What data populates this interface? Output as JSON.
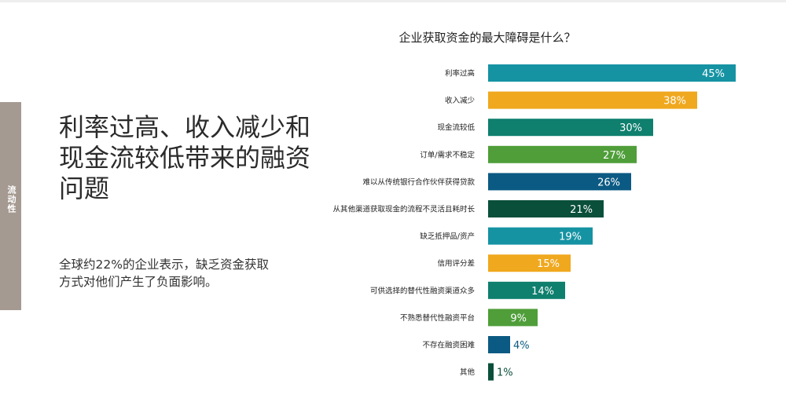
{
  "side_tab": {
    "label": "流动性"
  },
  "headline": "利率过高、收入减少和现金流较低带来的融资问题",
  "subtext": "全球约22%的企业表示，缺乏资金获取方式对他们产生了负面影响。",
  "chart_data": {
    "type": "bar",
    "orientation": "horizontal",
    "title": "企业获取资金的最大障碍是什么？",
    "xlabel": "",
    "ylabel": "",
    "xlim": [
      0,
      50
    ],
    "grid": false,
    "value_suffix": "%",
    "categories": [
      "利率过高",
      "收入减少",
      "现金流较低",
      "订单/需求不稳定",
      "难以从传统银行合作伙伴获得贷款",
      "从其他渠道获取现金的流程不灵活且耗时长",
      "缺乏抵押品/资产",
      "信用评分差",
      "可供选择的替代性融资渠道众多",
      "不熟悉替代性融资平台",
      "不存在融资困难",
      "其他"
    ],
    "values": [
      45,
      38,
      30,
      27,
      26,
      21,
      19,
      15,
      14,
      9,
      4,
      1
    ],
    "value_labels": [
      "45%",
      "38%",
      "30%",
      "27%",
      "26%",
      "21%",
      "19%",
      "15%",
      "14%",
      "9%",
      "4%",
      "1%"
    ],
    "colors": [
      "#1593a3",
      "#f0a81e",
      "#0f7f6e",
      "#4f9e3a",
      "#0b5a83",
      "#0a4f3a",
      "#1593a3",
      "#f0a81e",
      "#0f7f6e",
      "#4f9e3a",
      "#0b5a83",
      "#0a4f3a"
    ]
  }
}
